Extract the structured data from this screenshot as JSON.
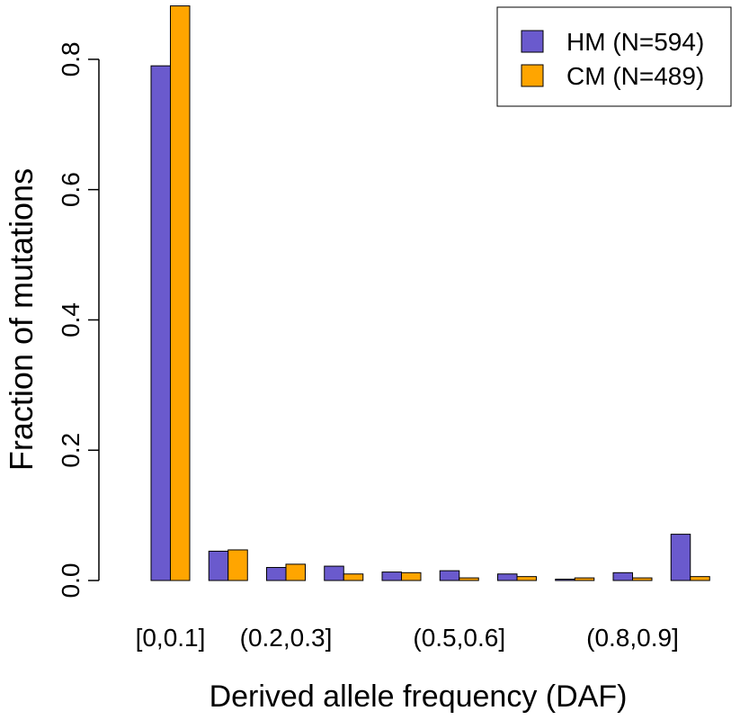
{
  "chart_data": {
    "type": "bar",
    "xlabel": "Derived allele frequency (DAF)",
    "ylabel": "Fraction of mutations",
    "ylim": [
      0,
      0.88
    ],
    "yticks": [
      0.0,
      0.2,
      0.4,
      0.6,
      0.8
    ],
    "ytick_labels": [
      "0.0",
      "0.2",
      "0.4",
      "0.6",
      "0.8"
    ],
    "categories": [
      "[0,0.1]",
      "(0.1,0.2]",
      "(0.2,0.3]",
      "(0.3,0.4]",
      "(0.4,0.5]",
      "(0.5,0.6]",
      "(0.6,0.7]",
      "(0.7,0.8]",
      "(0.8,0.9]",
      "(0.9,1]"
    ],
    "xtick_labels_shown": [
      "[0,0.1]",
      "(0.2,0.3]",
      "(0.5,0.6]",
      "(0.8,0.9]"
    ],
    "xtick_label_positions": [
      0,
      2,
      5,
      8
    ],
    "series": [
      {
        "name": "HM (N=594)",
        "color": "#6A5ACD",
        "values": [
          0.79,
          0.045,
          0.02,
          0.022,
          0.013,
          0.015,
          0.01,
          0.002,
          0.012,
          0.071
        ]
      },
      {
        "name": "CM (N=489)",
        "color": "#FFA500",
        "values": [
          0.882,
          0.047,
          0.025,
          0.01,
          0.012,
          0.004,
          0.006,
          0.004,
          0.004,
          0.006
        ]
      }
    ],
    "legend_position": "top-right",
    "grid": false
  }
}
